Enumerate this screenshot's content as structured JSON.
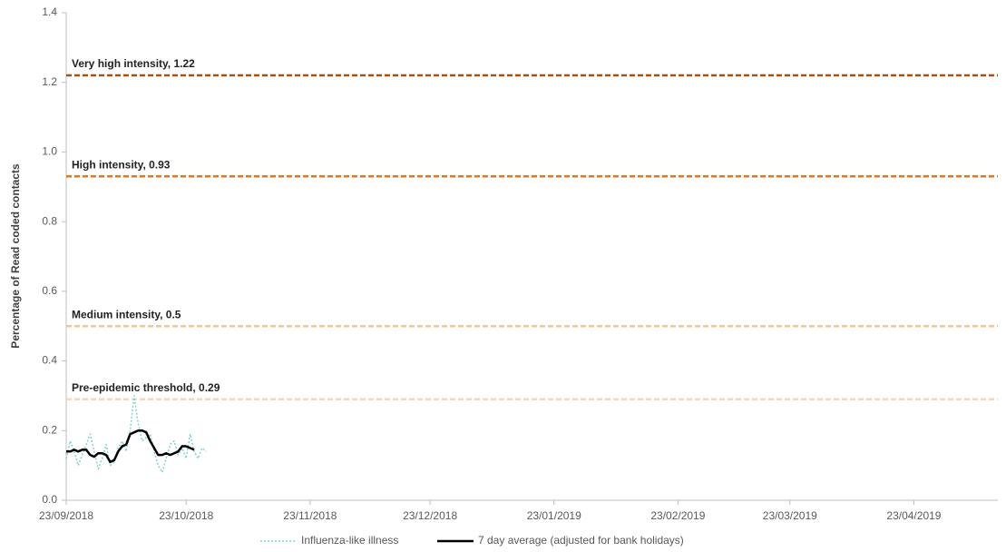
{
  "chart_data": {
    "type": "line",
    "y_label": "Percentage of Read coded contacts",
    "x": [
      "2018-09-23",
      "2018-09-24",
      "2018-09-25",
      "2018-09-26",
      "2018-09-27",
      "2018-09-28",
      "2018-09-29",
      "2018-09-30",
      "2018-10-01",
      "2018-10-02",
      "2018-10-03",
      "2018-10-04",
      "2018-10-05",
      "2018-10-06",
      "2018-10-07",
      "2018-10-08",
      "2018-10-09",
      "2018-10-10",
      "2018-10-11",
      "2018-10-12",
      "2018-10-13",
      "2018-10-14",
      "2018-10-15",
      "2018-10-16",
      "2018-10-17",
      "2018-10-18",
      "2018-10-19",
      "2018-10-20",
      "2018-10-21",
      "2018-10-22",
      "2018-10-23",
      "2018-10-24",
      "2018-10-25",
      "2018-10-26",
      "2018-10-27",
      "2018-10-28"
    ],
    "series": [
      {
        "name": "Influenza-like illness",
        "color": "#7fd3d0",
        "dashed": true,
        "values": [
          0.12,
          0.17,
          0.14,
          0.1,
          0.13,
          0.16,
          0.19,
          0.14,
          0.09,
          0.12,
          0.16,
          0.1,
          0.11,
          0.15,
          0.17,
          0.14,
          0.2,
          0.3,
          0.22,
          0.17,
          0.18,
          0.19,
          0.14,
          0.1,
          0.08,
          0.12,
          0.16,
          0.17,
          0.13,
          0.15,
          0.12,
          0.19,
          0.14,
          0.12,
          0.15,
          0.14
        ]
      },
      {
        "name": "7 day average (adjusted for bank holidays)",
        "color": "#000000",
        "dashed": false,
        "values": [
          0.14,
          0.14,
          0.145,
          0.14,
          0.145,
          0.145,
          0.13,
          0.125,
          0.135,
          0.135,
          0.13,
          0.11,
          0.115,
          0.14,
          0.155,
          0.16,
          0.19,
          0.195,
          0.2,
          0.2,
          0.195,
          0.17,
          0.15,
          0.13,
          0.13,
          0.135,
          0.13,
          0.135,
          0.14,
          0.155,
          0.155,
          0.15,
          0.145,
          null,
          null,
          null
        ]
      }
    ],
    "thresholds": [
      {
        "annotation": "Very high intensity, 1.22",
        "value": 1.22,
        "color": "#a94f0f"
      },
      {
        "annotation": "High intensity, 0.93",
        "value": 0.93,
        "color": "#e6761d"
      },
      {
        "annotation": "Medium intensity, 0.5",
        "value": 0.5,
        "color": "#f4c39a"
      },
      {
        "annotation": "Pre-epidemic threshold, 0.29",
        "value": 0.29,
        "color": "#f8d5ba"
      }
    ],
    "xlim": [
      "2018-09-23",
      "2019-05-14"
    ],
    "xticks": [
      {
        "value": "2018-09-23",
        "label": "23/09/2018"
      },
      {
        "value": "2018-10-23",
        "label": "23/10/2018"
      },
      {
        "value": "2018-11-23",
        "label": "23/11/2018"
      },
      {
        "value": "2018-12-23",
        "label": "23/12/2018"
      },
      {
        "value": "2019-01-23",
        "label": "23/01/2019"
      },
      {
        "value": "2019-02-23",
        "label": "23/02/2019"
      },
      {
        "value": "2019-03-23",
        "label": "23/03/2019"
      },
      {
        "value": "2019-04-23",
        "label": "23/04/2019"
      }
    ],
    "ylim": [
      0,
      1.4
    ],
    "yticks": [
      {
        "value": 0,
        "label": "0.0"
      },
      0.2,
      0.4,
      0.6,
      0.8,
      {
        "value": 1,
        "label": "1.0"
      },
      1.2,
      1.4
    ],
    "legend": "bottom"
  }
}
